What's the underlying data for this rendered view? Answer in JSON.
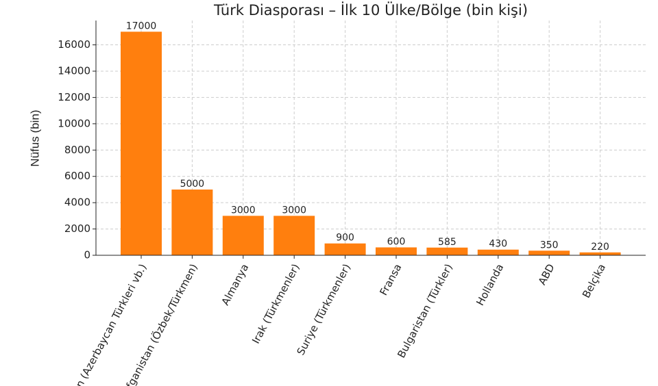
{
  "chart_data": {
    "type": "bar",
    "title": "Türk Diasporası – İlk 10 Ülke/Bölge (bin kişi)",
    "y_label": "Nüfus (bin)",
    "categories": [
      "İran (Azerbaycan Türkleri vb.)",
      "Afganistan (Özbek/Türkmen)",
      "Almanya",
      "Irak (Türkmenler)",
      "Suriye (Türkmenler)",
      "Fransa",
      "Bulgaristan (Türkler)",
      "Hollanda",
      "ABD",
      "Belçika"
    ],
    "values": [
      17000,
      5000,
      3000,
      3000,
      900,
      600,
      585,
      430,
      350,
      220
    ],
    "color": "#ff7f0e",
    "ylim": [
      0,
      17850
    ],
    "yticks": [
      0,
      2000,
      4000,
      6000,
      8000,
      10000,
      12000,
      14000,
      16000
    ],
    "grid": true
  }
}
